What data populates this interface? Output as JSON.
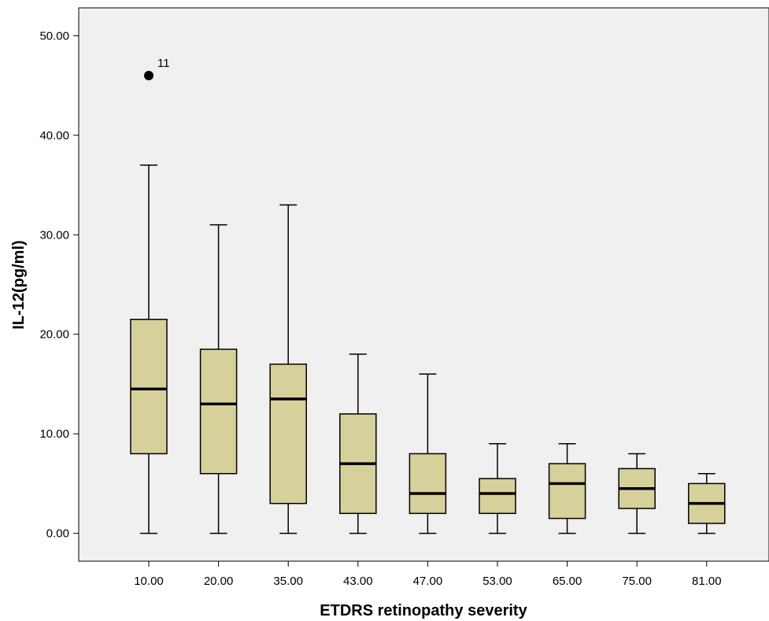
{
  "chart_data": {
    "type": "boxplot",
    "title": "",
    "xlabel": "ETDRS retinopathy severity",
    "ylabel": "IL-12(pg/ml)",
    "ylim": [
      -2.8,
      52.8
    ],
    "yticks": [
      0,
      10,
      20,
      30,
      40,
      50
    ],
    "ytick_labels": [
      "0.00",
      "10.00",
      "20.00",
      "30.00",
      "40.00",
      "50.00"
    ],
    "grid": false,
    "colors": {
      "box_fill": "#d6d09b",
      "background": "#f0f0f0",
      "stroke": "#000000"
    },
    "categories": [
      "10.00",
      "20.00",
      "35.00",
      "43.00",
      "47.00",
      "53.00",
      "65.00",
      "75.00",
      "81.00"
    ],
    "boxes": [
      {
        "category": "10.00",
        "min": 0,
        "q1": 8,
        "median": 14.5,
        "q3": 21.5,
        "max": 37
      },
      {
        "category": "20.00",
        "min": 0,
        "q1": 6,
        "median": 13,
        "q3": 18.5,
        "max": 31
      },
      {
        "category": "35.00",
        "min": 0,
        "q1": 3,
        "median": 13.5,
        "q3": 17,
        "max": 33
      },
      {
        "category": "43.00",
        "min": 0,
        "q1": 2,
        "median": 7,
        "q3": 12,
        "max": 18
      },
      {
        "category": "47.00",
        "min": 0,
        "q1": 2,
        "median": 4,
        "q3": 8,
        "max": 16
      },
      {
        "category": "53.00",
        "min": 0,
        "q1": 2,
        "median": 4,
        "q3": 5.5,
        "max": 9
      },
      {
        "category": "65.00",
        "min": 0,
        "q1": 1.5,
        "median": 5,
        "q3": 7,
        "max": 9
      },
      {
        "category": "75.00",
        "min": 0,
        "q1": 2.5,
        "median": 4.5,
        "q3": 6.5,
        "max": 8
      },
      {
        "category": "81.00",
        "min": 0,
        "q1": 1,
        "median": 3,
        "q3": 5,
        "max": 6
      }
    ],
    "outliers": [
      {
        "category": "10.00",
        "value": 46,
        "label": "11"
      }
    ]
  }
}
